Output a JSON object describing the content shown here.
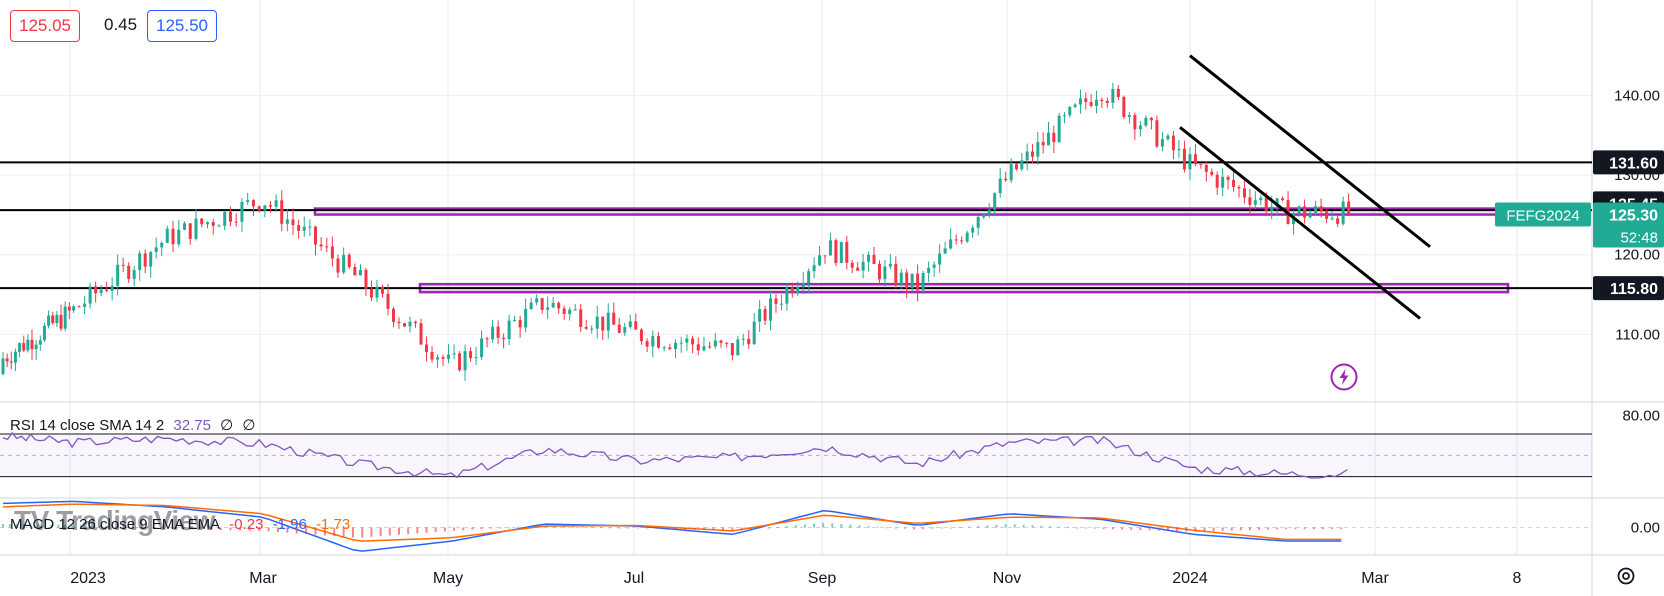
{
  "quote": {
    "bid": "125.05",
    "spread": "0.45",
    "ask": "125.50"
  },
  "watermark": "TradingView",
  "price_axis": {
    "ticks": [
      "140.00",
      "130.00",
      "120.00",
      "110.00"
    ]
  },
  "rsi_axis": {
    "ticks": [
      "80.00"
    ]
  },
  "macd_axis": {
    "ticks": [
      "0.00"
    ]
  },
  "time_axis": {
    "labels": [
      "2023",
      "Mar",
      "May",
      "Jul",
      "Sep",
      "Nov",
      "2024",
      "Mar",
      "8"
    ]
  },
  "tags": {
    "level_131": "131.60",
    "level_125": "125.45",
    "symbol": "FEFG2024",
    "last": "125.30",
    "countdown": "52:48",
    "level_115": "115.80"
  },
  "rsi_label": {
    "name": "RSI 14 close SMA 14 2",
    "value": "32.75",
    "extra1": "∅",
    "extra2": "∅"
  },
  "macd_label": {
    "name": "MACD 12 26 close 9 EMA EMA",
    "hist": "-0.23",
    "macd": "-1.96",
    "signal": "-1.73"
  },
  "colors": {
    "up": "#22ab94",
    "down": "#f23645",
    "rsi": "#7e57c2",
    "zone": "#9c27b0",
    "macd": "#2962ff",
    "signal": "#ff6d00",
    "tag": "#131722",
    "symbol_tag": "#22ab94"
  },
  "chart_data": [
    {
      "type": "candlestick",
      "symbol": "FEFG2024",
      "x": [
        "2022-12",
        "2023-01",
        "2023-02",
        "2023-03",
        "2023-04",
        "2023-05",
        "2023-06",
        "2023-07",
        "2023-08",
        "2023-09",
        "2023-10",
        "2023-11",
        "2023-12",
        "2024-01",
        "2024-02"
      ],
      "close": [
        107,
        113,
        122,
        127,
        117,
        106,
        114,
        110,
        108,
        121,
        116,
        130,
        141,
        131,
        125.3
      ],
      "horizontal_levels": [
        131.6,
        125.45,
        115.8
      ],
      "zones": [
        [
          125.1,
          125.8
        ],
        [
          115.3,
          116.3
        ]
      ],
      "channel": {
        "upper_start": [
          "2024-01",
          145
        ],
        "upper_end": [
          "2024-03",
          121
        ],
        "lower_start": [
          "2024-01",
          136
        ],
        "lower_end": [
          "2024-03",
          112
        ]
      },
      "ylim": [
        102,
        152
      ]
    },
    {
      "type": "line",
      "title": "RSI 14 close SMA 14 2",
      "x": [
        "2022-12",
        "2023-01",
        "2023-02",
        "2023-03",
        "2023-04",
        "2023-05",
        "2023-06",
        "2023-07",
        "2023-08",
        "2023-09",
        "2023-10",
        "2023-11",
        "2023-12",
        "2024-01",
        "2024-02"
      ],
      "values": [
        68,
        62,
        66,
        61,
        42,
        30,
        56,
        45,
        48,
        58,
        42,
        62,
        64,
        38,
        32.75
      ],
      "bands": [
        70,
        50,
        30
      ],
      "ylim": [
        10,
        100
      ]
    },
    {
      "type": "line",
      "title": "MACD 12 26 close 9 EMA EMA",
      "x": [
        "2022-12",
        "2023-01",
        "2023-02",
        "2023-03",
        "2023-04",
        "2023-05",
        "2023-06",
        "2023-07",
        "2023-08",
        "2023-09",
        "2023-10",
        "2023-11",
        "2023-12",
        "2024-01",
        "2024-02"
      ],
      "series": [
        {
          "name": "MACD",
          "values": [
            3.5,
            3.8,
            3.0,
            1.5,
            -3.5,
            -2.0,
            0.5,
            0.2,
            -1.0,
            2.5,
            0.3,
            2.0,
            1.2,
            -1.0,
            -1.96
          ]
        },
        {
          "name": "Signal",
          "values": [
            3.0,
            3.4,
            3.2,
            2.0,
            -2.0,
            -1.5,
            0.2,
            0.3,
            -0.5,
            1.8,
            0.6,
            1.5,
            1.4,
            -0.4,
            -1.73
          ]
        },
        {
          "name": "Histogram",
          "values": [
            0.5,
            0.4,
            -0.2,
            -0.5,
            -1.5,
            -0.5,
            0.3,
            -0.1,
            -0.5,
            0.7,
            -0.3,
            0.5,
            -0.2,
            -0.6,
            -0.23
          ]
        }
      ],
      "ylim": [
        -4,
        4
      ]
    }
  ]
}
